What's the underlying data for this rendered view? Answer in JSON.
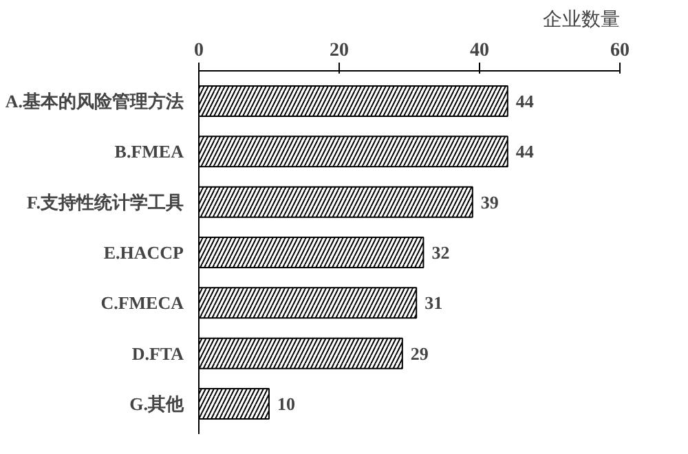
{
  "chart_data": {
    "type": "bar",
    "orientation": "horizontal",
    "xlabel": "企业数量",
    "categories": [
      "A.基本的风险管理方法",
      "B.FMEA",
      "F.支持性统计学工具",
      "E.HACCP",
      "C.FMECA",
      "D.FTA",
      "G.其他"
    ],
    "values": [
      44,
      44,
      39,
      32,
      31,
      29,
      10
    ],
    "color": "#000000",
    "xlim": [
      0,
      60
    ],
    "xticks": [
      0,
      20,
      40,
      60
    ],
    "grid": false,
    "data_labels": true
  }
}
